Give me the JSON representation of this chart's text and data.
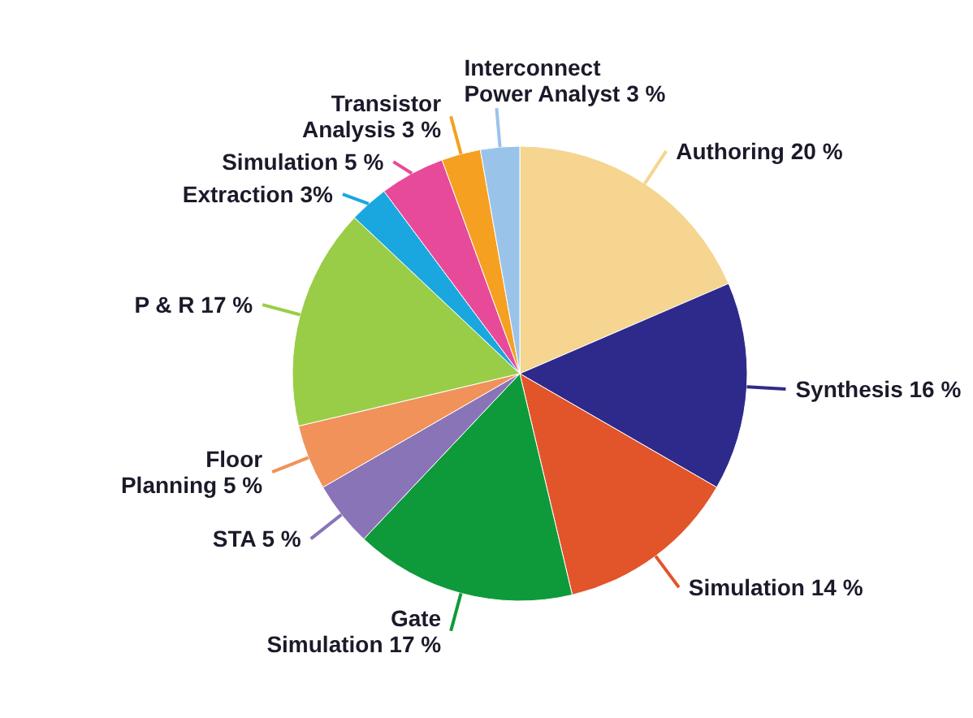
{
  "chart_data": {
    "type": "pie",
    "categories": [
      "Authoring",
      "Synthesis",
      "Simulation",
      "Gate Simulation",
      "STA",
      "Floor Planning",
      "P & R",
      "Extraction",
      "Simulation",
      "Transistor Analysis",
      "Interconnect Power Analyst"
    ],
    "values": [
      20,
      16,
      14,
      17,
      5,
      5,
      17,
      3,
      5,
      3,
      3
    ],
    "value_labels": [
      "20 %",
      "16 %",
      "14 %",
      "17 %",
      "5 %",
      "5 %",
      "17 %",
      "3%",
      "5 %",
      "3 %",
      "3 %"
    ],
    "colors": [
      "#f5d58f",
      "#2e2a8c",
      "#e2542a",
      "#0e9a3a",
      "#8a74b8",
      "#f0925a",
      "#9acd47",
      "#1aa7e0",
      "#e84a9a",
      "#f5a020",
      "#9ac3ea"
    ],
    "legend": false
  }
}
